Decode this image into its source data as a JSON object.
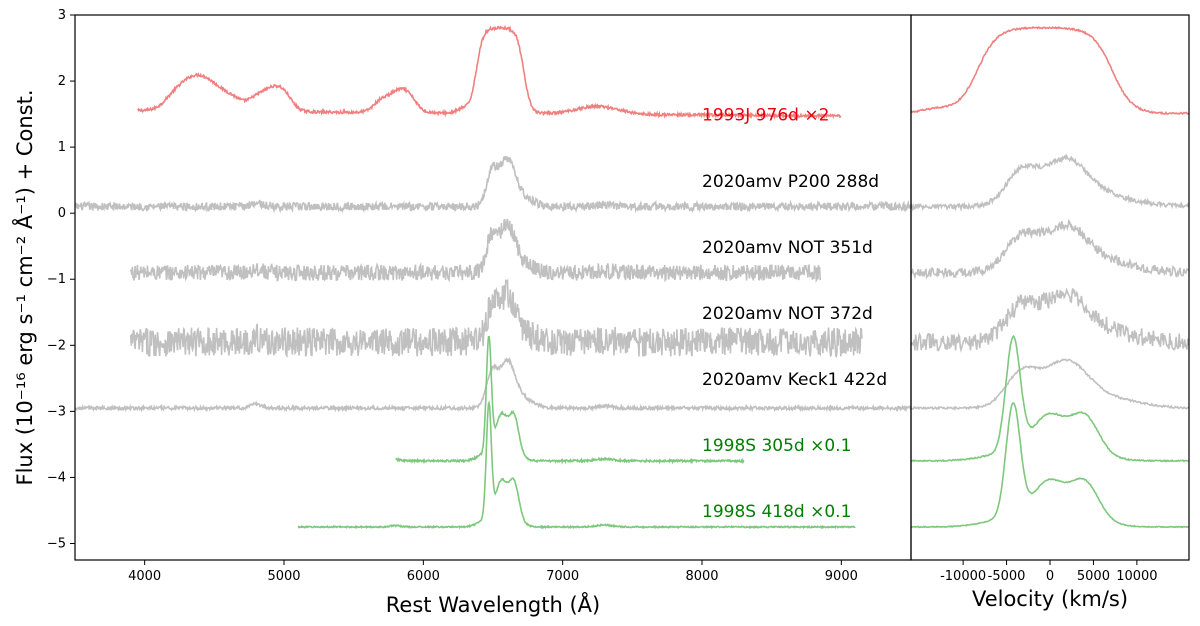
{
  "chart_data": {
    "type": "line",
    "panels": [
      {
        "name": "wavelength",
        "xlabel": "Rest Wavelength (Å)",
        "xlim": [
          3500,
          9500
        ],
        "xticks": [
          4000,
          5000,
          6000,
          7000,
          8000,
          9000
        ]
      },
      {
        "name": "velocity",
        "xlabel": "Velocity (km/s)",
        "xlim": [
          -16000,
          16000
        ],
        "xticks": [
          -10000,
          -5000,
          0,
          5000,
          10000
        ],
        "xtick_labels": [
          "-10000",
          "-5000",
          "0",
          "5000",
          "10000"
        ]
      }
    ],
    "ylabel": "Flux (10⁻¹⁶ erg s⁻¹ cm⁻² Å⁻¹) + Const.",
    "ylim": [
      -5.25,
      3.0
    ],
    "yticks": [
      -5,
      -4,
      -3,
      -2,
      -1,
      0,
      1,
      2,
      3
    ],
    "ytick_labels": [
      "−5",
      "−4",
      "−3",
      "−2",
      "−1",
      "0",
      "1",
      "2",
      "3"
    ],
    "series": [
      {
        "name": "1993J 976d ×2",
        "color": "#f08080",
        "offset": 1.2,
        "wmin": 3950,
        "wmax": 9000,
        "kind": "93J",
        "noise": 0.02
      },
      {
        "name": "2020amv P200 288d",
        "color": "#c0c0c0",
        "offset": 0.1,
        "wmin": 3500,
        "wmax": 9500,
        "kind": "amv",
        "noise": 0.06
      },
      {
        "name": "2020amv NOT 351d",
        "color": "#c0c0c0",
        "offset": -0.9,
        "wmin": 3900,
        "wmax": 8850,
        "kind": "amv",
        "noise": 0.12
      },
      {
        "name": "2020amv NOT 372d",
        "color": "#c0c0c0",
        "offset": -1.95,
        "wmin": 3900,
        "wmax": 9150,
        "kind": "amv",
        "noise": 0.22
      },
      {
        "name": "2020amv Keck1 422d",
        "color": "#c0c0c0",
        "offset": -2.95,
        "wmin": 3500,
        "wmax": 9500,
        "kind": "amv",
        "noise": 0.025
      },
      {
        "name": "1998S 305d ×0.1",
        "color": "#7dc87d",
        "offset": -3.75,
        "wmin": 5800,
        "wmax": 8300,
        "kind": "98S",
        "noise": 0.015
      },
      {
        "name": "1998S 418d ×0.1",
        "color": "#7dc87d",
        "offset": -4.75,
        "wmin": 5100,
        "wmax": 9100,
        "kind": "98S",
        "noise": 0.01
      }
    ],
    "labels": [
      {
        "text": "1993J 976d ×2",
        "color": "#e8000b",
        "wave": 8000,
        "y": 1.4
      },
      {
        "text": "2020amv P200 288d",
        "color": "#000000",
        "wave": 8000,
        "y": 0.4
      },
      {
        "text": "2020amv NOT 351d",
        "color": "#000000",
        "wave": 8000,
        "y": -0.6
      },
      {
        "text": "2020amv NOT 372d",
        "color": "#000000",
        "wave": 8000,
        "y": -1.6
      },
      {
        "text": "2020amv Keck1 422d",
        "color": "#000000",
        "wave": 8000,
        "y": -2.6
      },
      {
        "text": "1998S 305d ×0.1",
        "color": "#008000",
        "wave": 8000,
        "y": -3.6
      },
      {
        "text": "1998S 418d ×0.1",
        "color": "#008000",
        "wave": 8000,
        "y": -4.6
      }
    ]
  }
}
